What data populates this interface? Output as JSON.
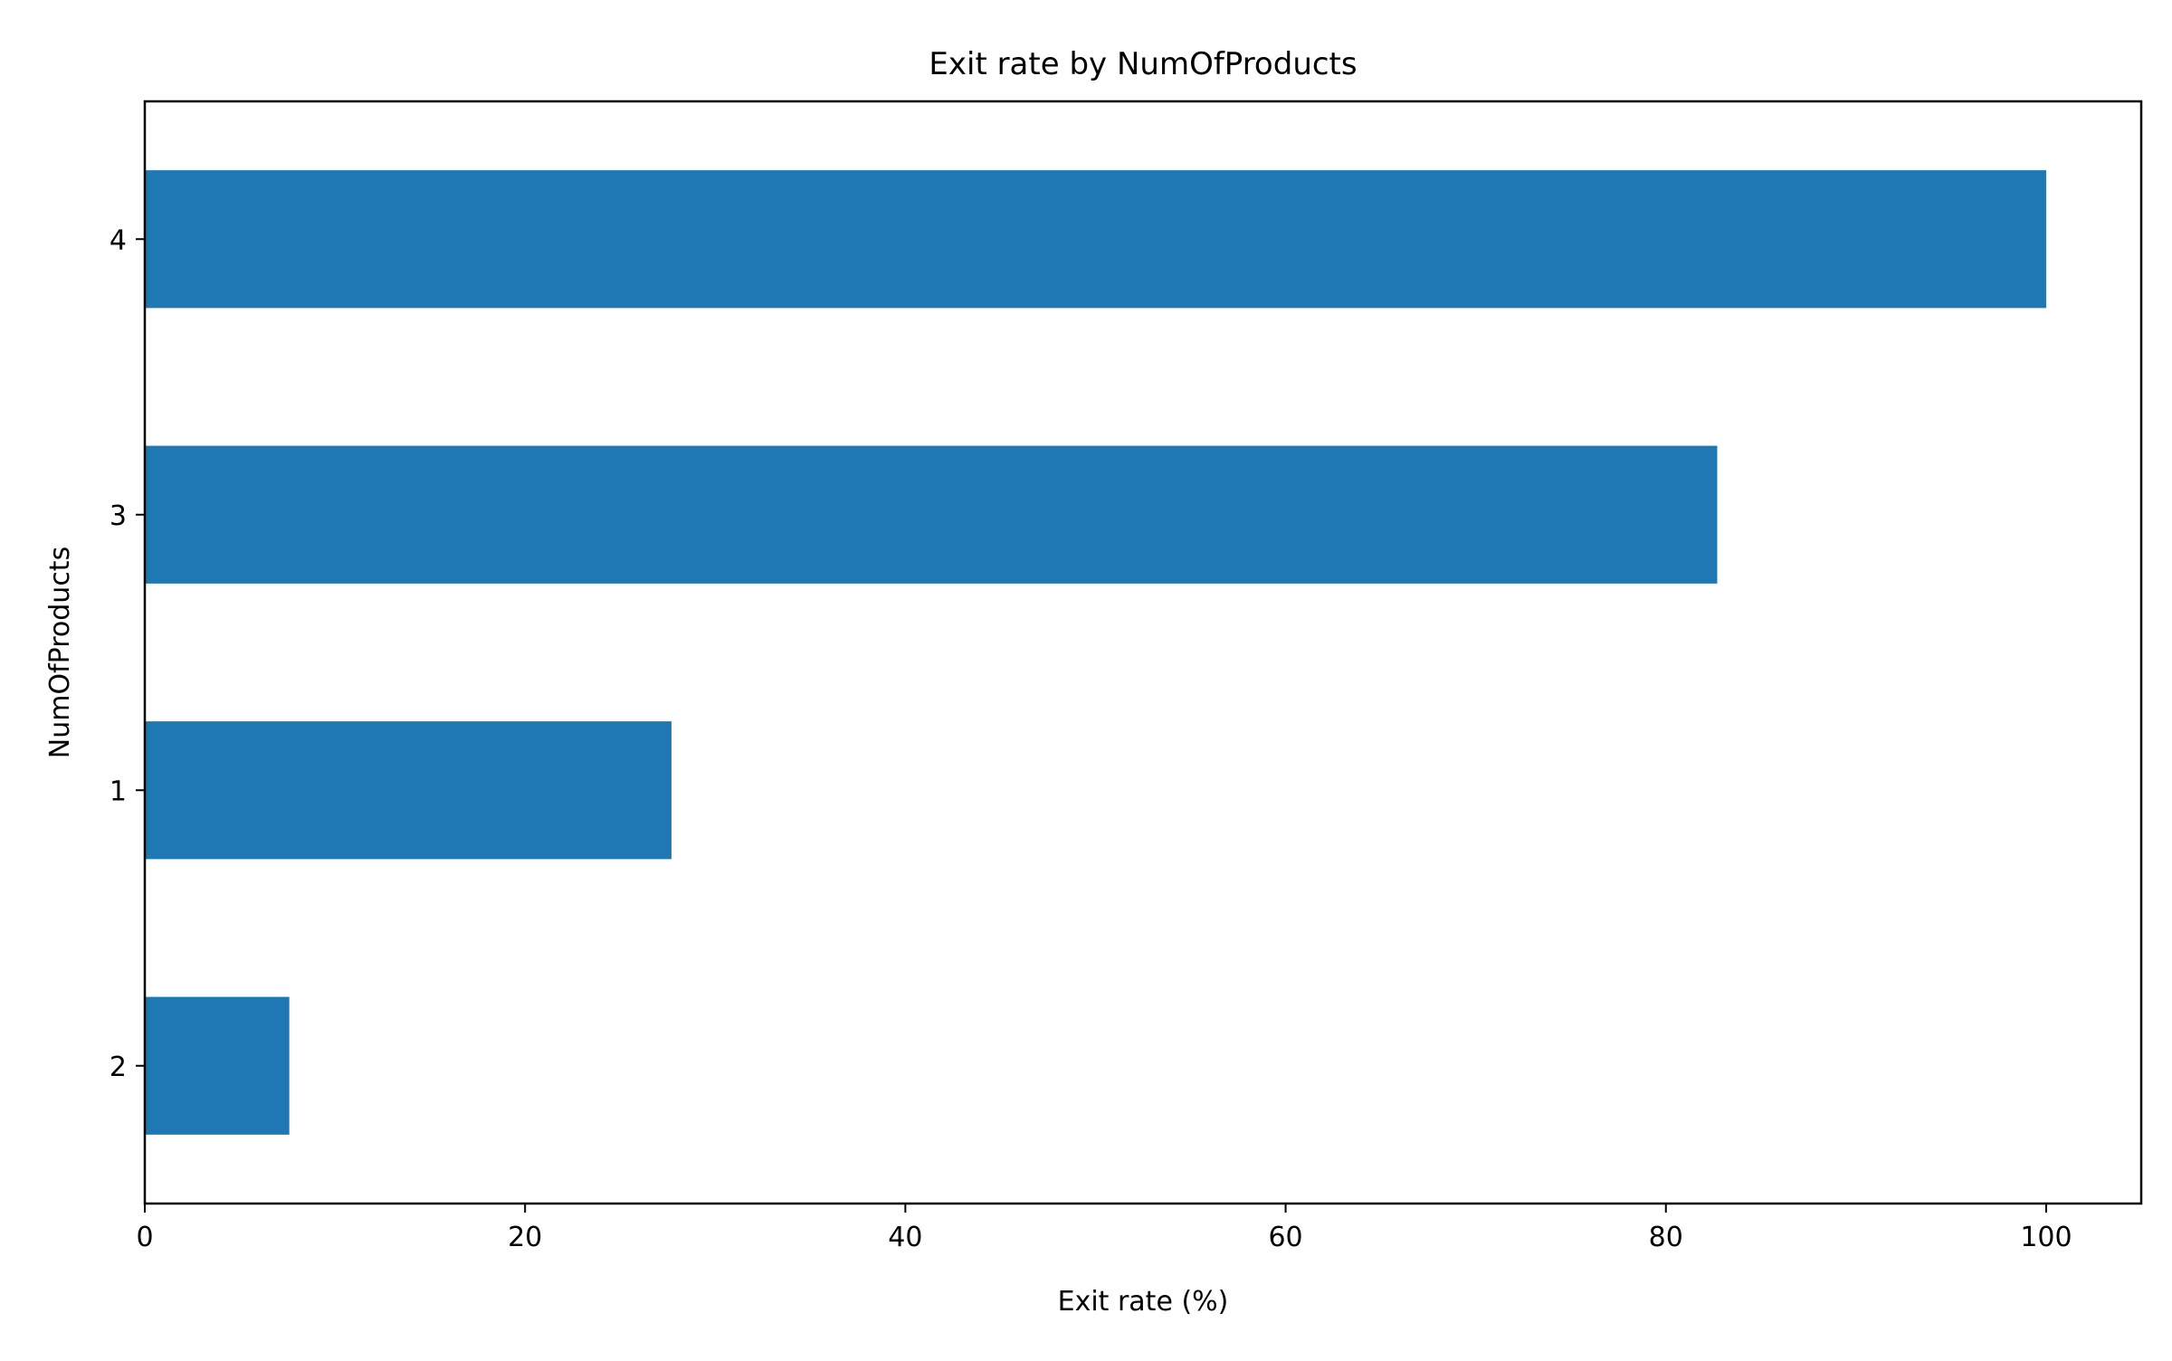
{
  "chart_data": {
    "type": "bar",
    "orientation": "horizontal",
    "title": "Exit rate by NumOfProducts",
    "xlabel": "Exit rate (%)",
    "ylabel": "NumOfProducts",
    "categories": [
      "2",
      "1",
      "3",
      "4"
    ],
    "values": [
      7.6,
      27.7,
      82.7,
      100.0
    ],
    "xlim": [
      0,
      105
    ],
    "xticks": [
      0,
      20,
      40,
      60,
      80,
      100
    ],
    "bar_color": "#1f77b4",
    "grid": false,
    "legend": "none"
  }
}
